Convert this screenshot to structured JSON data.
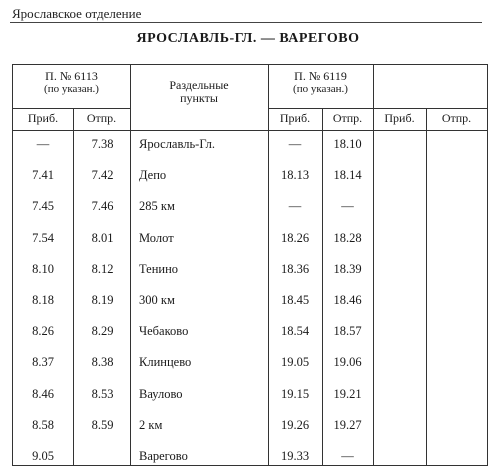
{
  "section": "Ярославское отделение",
  "route_title": "ЯРОСЛАВЛЬ-ГЛ. — ВАРЕГОВО",
  "headers": {
    "train1": "П. № 6113",
    "train1_note": "(по указан.)",
    "stations": "Раздельные\nпункты",
    "train2": "П. № 6119",
    "train2_note": "(по указан.)",
    "arrive": "Приб.",
    "depart": "Отпр."
  },
  "rows": [
    {
      "a1": "—",
      "d1": "7.38",
      "station": "Ярославль-Гл.",
      "a2": "—",
      "d2": "18.10"
    },
    {
      "a1": "7.41",
      "d1": "7.42",
      "station": "Депо",
      "a2": "18.13",
      "d2": "18.14"
    },
    {
      "a1": "7.45",
      "d1": "7.46",
      "station": "285 км",
      "a2": "—",
      "d2": "—"
    },
    {
      "a1": "7.54",
      "d1": "8.01",
      "station": "Молот",
      "a2": "18.26",
      "d2": "18.28"
    },
    {
      "a1": "8.10",
      "d1": "8.12",
      "station": "Тенино",
      "a2": "18.36",
      "d2": "18.39"
    },
    {
      "a1": "8.18",
      "d1": "8.19",
      "station": "300 км",
      "a2": "18.45",
      "d2": "18.46"
    },
    {
      "a1": "8.26",
      "d1": "8.29",
      "station": "Чебаково",
      "a2": "18.54",
      "d2": "18.57"
    },
    {
      "a1": "8.37",
      "d1": "8.38",
      "station": "Клинцево",
      "a2": "19.05",
      "d2": "19.06"
    },
    {
      "a1": "8.46",
      "d1": "8.53",
      "station": "Ваулово",
      "a2": "19.15",
      "d2": "19.21"
    },
    {
      "a1": "8.58",
      "d1": "8.59",
      "station": "2 км",
      "a2": "19.26",
      "d2": "19.27"
    },
    {
      "a1": "9.05",
      "d1": "",
      "station": "Варегово",
      "a2": "19.33",
      "d2": "—"
    }
  ]
}
